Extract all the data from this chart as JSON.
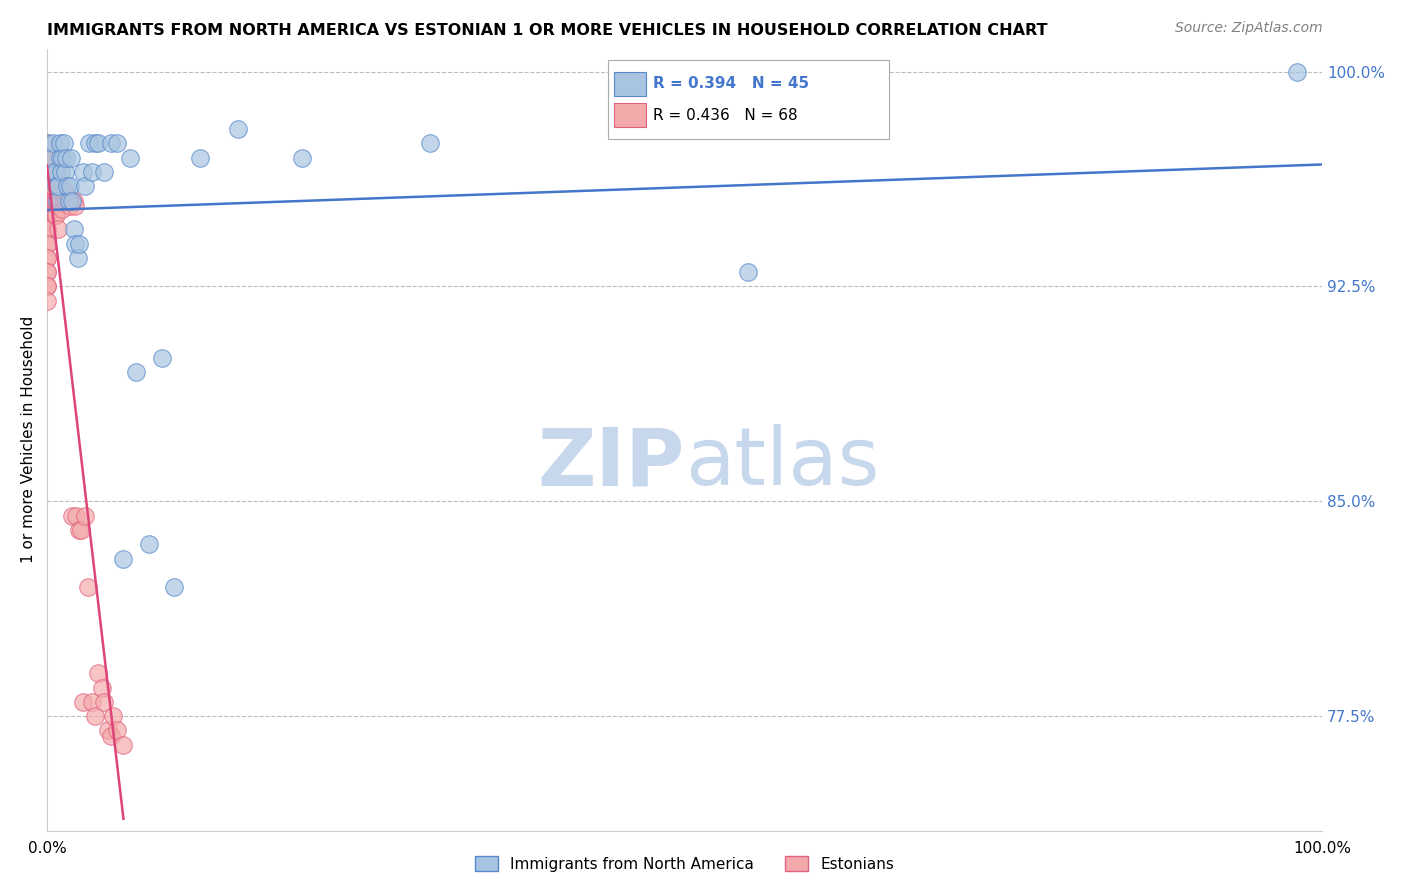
{
  "title": "IMMIGRANTS FROM NORTH AMERICA VS ESTONIAN 1 OR MORE VEHICLES IN HOUSEHOLD CORRELATION CHART",
  "source": "Source: ZipAtlas.com",
  "ylabel": "1 or more Vehicles in Household",
  "xmin": 0.0,
  "xmax": 1.0,
  "ymin": 0.735,
  "ymax": 1.008,
  "yright_ticks": [
    0.775,
    0.85,
    0.925,
    1.0
  ],
  "yright_labels": [
    "77.5%",
    "85.0%",
    "92.5%",
    "100.0%"
  ],
  "legend_R1": "R = 0.394",
  "legend_N1": "N = 45",
  "legend_R2": "R = 0.436",
  "legend_N2": "N = 68",
  "legend_label1": "Immigrants from North America",
  "legend_label2": "Estonians",
  "blue_color": "#A8C4E0",
  "pink_color": "#F4AAAA",
  "blue_edge_color": "#5588CC",
  "pink_edge_color": "#E06080",
  "blue_line_color": "#4477CC",
  "pink_line_color": "#DD4477",
  "watermark_color": "#C8D8EC",
  "blue_scatter_x": [
    0.0,
    0.0,
    0.003,
    0.005,
    0.006,
    0.007,
    0.008,
    0.009,
    0.01,
    0.01,
    0.011,
    0.012,
    0.013,
    0.014,
    0.015,
    0.016,
    0.017,
    0.018,
    0.019,
    0.02,
    0.021,
    0.022,
    0.024,
    0.025,
    0.028,
    0.03,
    0.033,
    0.035,
    0.038,
    0.04,
    0.045,
    0.05,
    0.055,
    0.06,
    0.065,
    0.07,
    0.08,
    0.09,
    0.1,
    0.12,
    0.15,
    0.2,
    0.3,
    0.55,
    0.98
  ],
  "blue_scatter_y": [
    0.965,
    0.975,
    0.97,
    0.975,
    0.965,
    0.96,
    0.955,
    0.96,
    0.97,
    0.975,
    0.965,
    0.97,
    0.975,
    0.965,
    0.97,
    0.96,
    0.955,
    0.96,
    0.97,
    0.955,
    0.945,
    0.94,
    0.935,
    0.94,
    0.965,
    0.96,
    0.975,
    0.965,
    0.975,
    0.975,
    0.965,
    0.975,
    0.975,
    0.83,
    0.97,
    0.895,
    0.835,
    0.9,
    0.82,
    0.97,
    0.98,
    0.97,
    0.975,
    0.93,
    1.0
  ],
  "pink_scatter_x": [
    0.0,
    0.0,
    0.0,
    0.0,
    0.0,
    0.0,
    0.0,
    0.0,
    0.0,
    0.0,
    0.0,
    0.0,
    0.0,
    0.0,
    0.0,
    0.0,
    0.0,
    0.0,
    0.0,
    0.0,
    0.002,
    0.002,
    0.003,
    0.003,
    0.004,
    0.004,
    0.005,
    0.005,
    0.005,
    0.006,
    0.006,
    0.007,
    0.007,
    0.008,
    0.008,
    0.009,
    0.009,
    0.01,
    0.01,
    0.011,
    0.012,
    0.012,
    0.013,
    0.014,
    0.015,
    0.016,
    0.017,
    0.018,
    0.019,
    0.02,
    0.021,
    0.022,
    0.023,
    0.025,
    0.027,
    0.028,
    0.03,
    0.032,
    0.035,
    0.038,
    0.04,
    0.043,
    0.045,
    0.048,
    0.05,
    0.052,
    0.055,
    0.06
  ],
  "pink_scatter_y": [
    0.975,
    0.97,
    0.965,
    0.96,
    0.96,
    0.955,
    0.955,
    0.95,
    0.95,
    0.945,
    0.945,
    0.94,
    0.94,
    0.935,
    0.935,
    0.93,
    0.93,
    0.925,
    0.925,
    0.92,
    0.97,
    0.96,
    0.965,
    0.955,
    0.97,
    0.96,
    0.965,
    0.96,
    0.955,
    0.955,
    0.95,
    0.955,
    0.95,
    0.965,
    0.96,
    0.955,
    0.945,
    0.96,
    0.955,
    0.955,
    0.958,
    0.952,
    0.955,
    0.955,
    0.958,
    0.955,
    0.956,
    0.953,
    0.955,
    0.845,
    0.955,
    0.953,
    0.845,
    0.84,
    0.84,
    0.78,
    0.845,
    0.82,
    0.78,
    0.775,
    0.79,
    0.785,
    0.78,
    0.77,
    0.768,
    0.775,
    0.77,
    0.765
  ]
}
